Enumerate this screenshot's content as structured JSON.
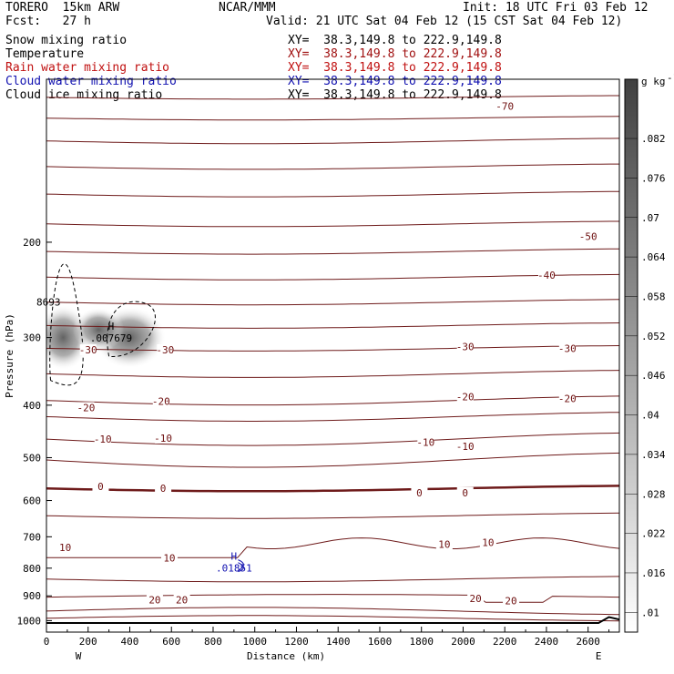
{
  "header": {
    "model": "TORERO  15km ARW",
    "org": "NCAR/MMM",
    "init": "Init: 18 UTC Fri 03 Feb 12",
    "fcst": "Fcst:   27 h",
    "valid": "Valid: 21 UTC Sat 04 Feb 12 (15 CST Sat 04 Feb 12)"
  },
  "legend": [
    {
      "name": "Snow mixing ratio",
      "xy": "XY=  38.3,149.8 to 222.9,149.8",
      "color": "#000000",
      "xy_color": "#000000"
    },
    {
      "name": "Temperature",
      "xy": "XY=  38.3,149.8 to 222.9,149.8",
      "color": "#000000",
      "xy_color": "#a01010"
    },
    {
      "name": "Rain water mixing ratio",
      "xy": "XY=  38.3,149.8 to 222.9,149.8",
      "color": "#c01010",
      "xy_color": "#c01010"
    },
    {
      "name": "Cloud water mixing ratio",
      "xy": "XY=  38.3,149.8 to 222.9,149.8",
      "color": "#1010b0",
      "xy_color": "#1010b0"
    },
    {
      "name": "Cloud ice mixing ratio",
      "xy": "XY=  38.3,149.8 to 222.9,149.8",
      "color": "#000000",
      "xy_color": "#000000"
    }
  ],
  "chart_data": {
    "type": "heatmap",
    "xlabel": "Distance (km)",
    "ylabel": "Pressure (hPa)",
    "xlim": [
      0,
      2750
    ],
    "ylim": [
      1050,
      100
    ],
    "y_scale": "log",
    "x_ticks": [
      "0",
      "200",
      "400",
      "600",
      "800",
      "1000",
      "1200",
      "1400",
      "1600",
      "1800",
      "2000",
      "2200",
      "2400",
      "2600"
    ],
    "y_ticks": [
      "200",
      "300",
      "400",
      "500",
      "600",
      "700",
      "800",
      "900",
      "1000"
    ],
    "x_end_labels": {
      "left": "W",
      "right": "E"
    },
    "colorbar": {
      "unit": "g kg",
      "unit_exp": "-1",
      "ticks": [
        ".01",
        ".016",
        ".022",
        ".028",
        ".034",
        ".04",
        ".046",
        ".052",
        ".058",
        ".064",
        ".07",
        ".076",
        ".082"
      ],
      "min": 0.01,
      "max": 0.088
    },
    "snow_shading": [
      {
        "x": 80,
        "p": 300,
        "value": 0.07
      },
      {
        "x": 400,
        "p": 300,
        "value": 0.07
      },
      {
        "x": 250,
        "p": 290,
        "value": 0.03
      }
    ],
    "temperature_contours": [
      {
        "label": "-70",
        "x": 2200,
        "p": 112
      },
      {
        "label": "-50",
        "x": 2600,
        "p": 195
      },
      {
        "label": "-40",
        "x": 2400,
        "p": 230
      },
      {
        "label": "-30",
        "x": 200,
        "p": 316
      },
      {
        "label": "-30",
        "x": 570,
        "p": 316
      },
      {
        "label": "-30",
        "x": 2010,
        "p": 312
      },
      {
        "label": "-30",
        "x": 2500,
        "p": 314
      },
      {
        "label": "-20",
        "x": 190,
        "p": 404
      },
      {
        "label": "-20",
        "x": 550,
        "p": 393
      },
      {
        "label": "-20",
        "x": 2010,
        "p": 386
      },
      {
        "label": "-20",
        "x": 2500,
        "p": 389
      },
      {
        "label": "-10",
        "x": 270,
        "p": 462
      },
      {
        "label": "-10",
        "x": 560,
        "p": 460
      },
      {
        "label": "-10",
        "x": 1820,
        "p": 468
      },
      {
        "label": "-10",
        "x": 2010,
        "p": 476
      },
      {
        "label": "0",
        "x": 260,
        "p": 565
      },
      {
        "label": "0",
        "x": 560,
        "p": 569
      },
      {
        "label": "0",
        "x": 1790,
        "p": 580
      },
      {
        "label": "0",
        "x": 2010,
        "p": 580
      },
      {
        "label": "10",
        "x": 90,
        "p": 733
      },
      {
        "label": "10",
        "x": 590,
        "p": 765
      },
      {
        "label": "10",
        "x": 1910,
        "p": 723
      },
      {
        "label": "10",
        "x": 2120,
        "p": 717
      },
      {
        "label": "20",
        "x": 520,
        "p": 915
      },
      {
        "label": "20",
        "x": 650,
        "p": 915
      },
      {
        "label": "20",
        "x": 2060,
        "p": 910
      },
      {
        "label": "20",
        "x": 2230,
        "p": 918
      }
    ],
    "maxima": [
      {
        "type": "H",
        "value": ".007679",
        "x": 310,
        "p": 297,
        "field": "snow"
      },
      {
        "type": "H",
        "value": ".01851",
        "x": 900,
        "p": 790,
        "field": "cloud water"
      },
      {
        "type": "",
        "value": "8693",
        "x": 10,
        "p": 255,
        "field": "snow"
      }
    ],
    "surface_pressure": 1010,
    "freezing_level_hpa": 570
  }
}
